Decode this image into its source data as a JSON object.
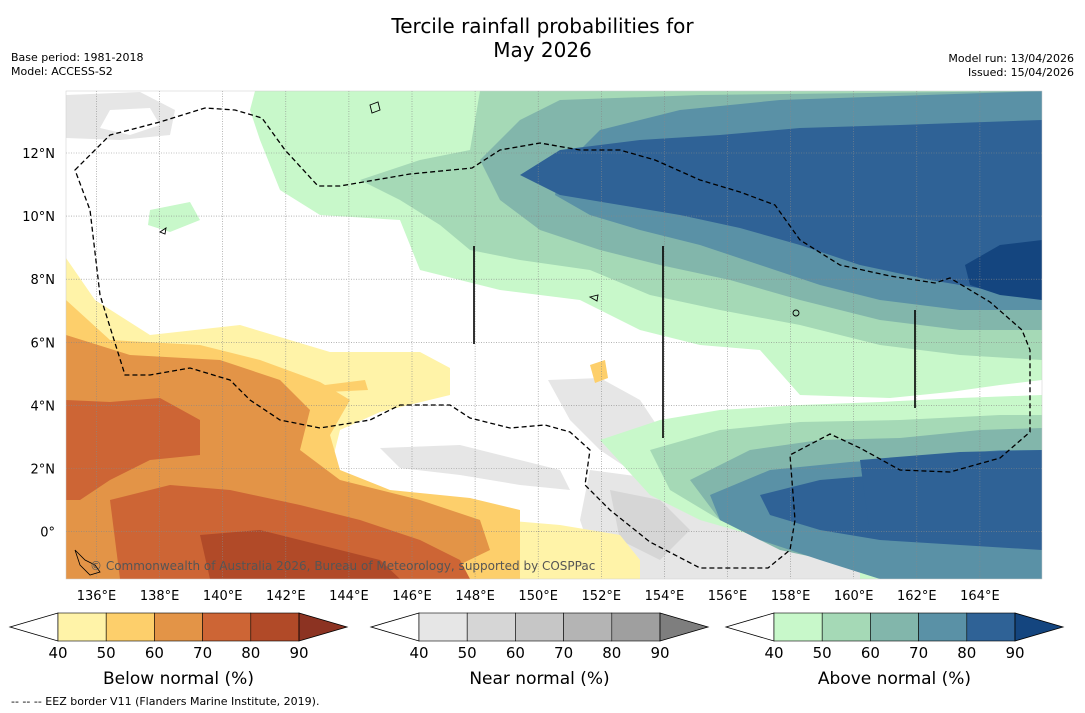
{
  "title": {
    "line1": "Tercile rainfall probabilities for",
    "line2": "May 2026"
  },
  "meta": {
    "base_period": "Base period: 1981-2018",
    "model": "Model: ACCESS-S2",
    "model_run": "Model run: 13/04/2026",
    "issued": "Issued: 15/04/2026"
  },
  "map": {
    "lon_ticks": [
      "136°E",
      "138°E",
      "140°E",
      "142°E",
      "144°E",
      "146°E",
      "148°E",
      "150°E",
      "152°E",
      "154°E",
      "156°E",
      "158°E",
      "160°E",
      "162°E",
      "164°E"
    ],
    "lat_ticks": [
      "12°N",
      "10°N",
      "8°N",
      "6°N",
      "4°N",
      "2°N",
      "0°"
    ],
    "copyright": "© Commonwealth of Australia 2026, Bureau of Meteorology, supported by COSPPac"
  },
  "colorbars": {
    "ticks": [
      "40",
      "50",
      "60",
      "70",
      "80",
      "90"
    ],
    "below": {
      "label": "Below normal (%)",
      "colors": [
        "#fff3a8",
        "#fdcf6b",
        "#e39447",
        "#cd6535",
        "#b14a28",
        "#8c3322"
      ]
    },
    "near": {
      "label": "Near normal (%)",
      "colors": [
        "#e6e6e6",
        "#d6d6d6",
        "#c6c6c6",
        "#b4b4b4",
        "#9f9f9f",
        "#7e7e7e"
      ]
    },
    "above": {
      "label": "Above normal (%)",
      "colors": [
        "#c8f8ca",
        "#a5d9b6",
        "#82b6ab",
        "#5a91a6",
        "#2f6296",
        "#14457f"
      ]
    }
  },
  "footnote": "--  --  -- EEZ border V11 (Flanders Marine Institute, 2019)."
}
